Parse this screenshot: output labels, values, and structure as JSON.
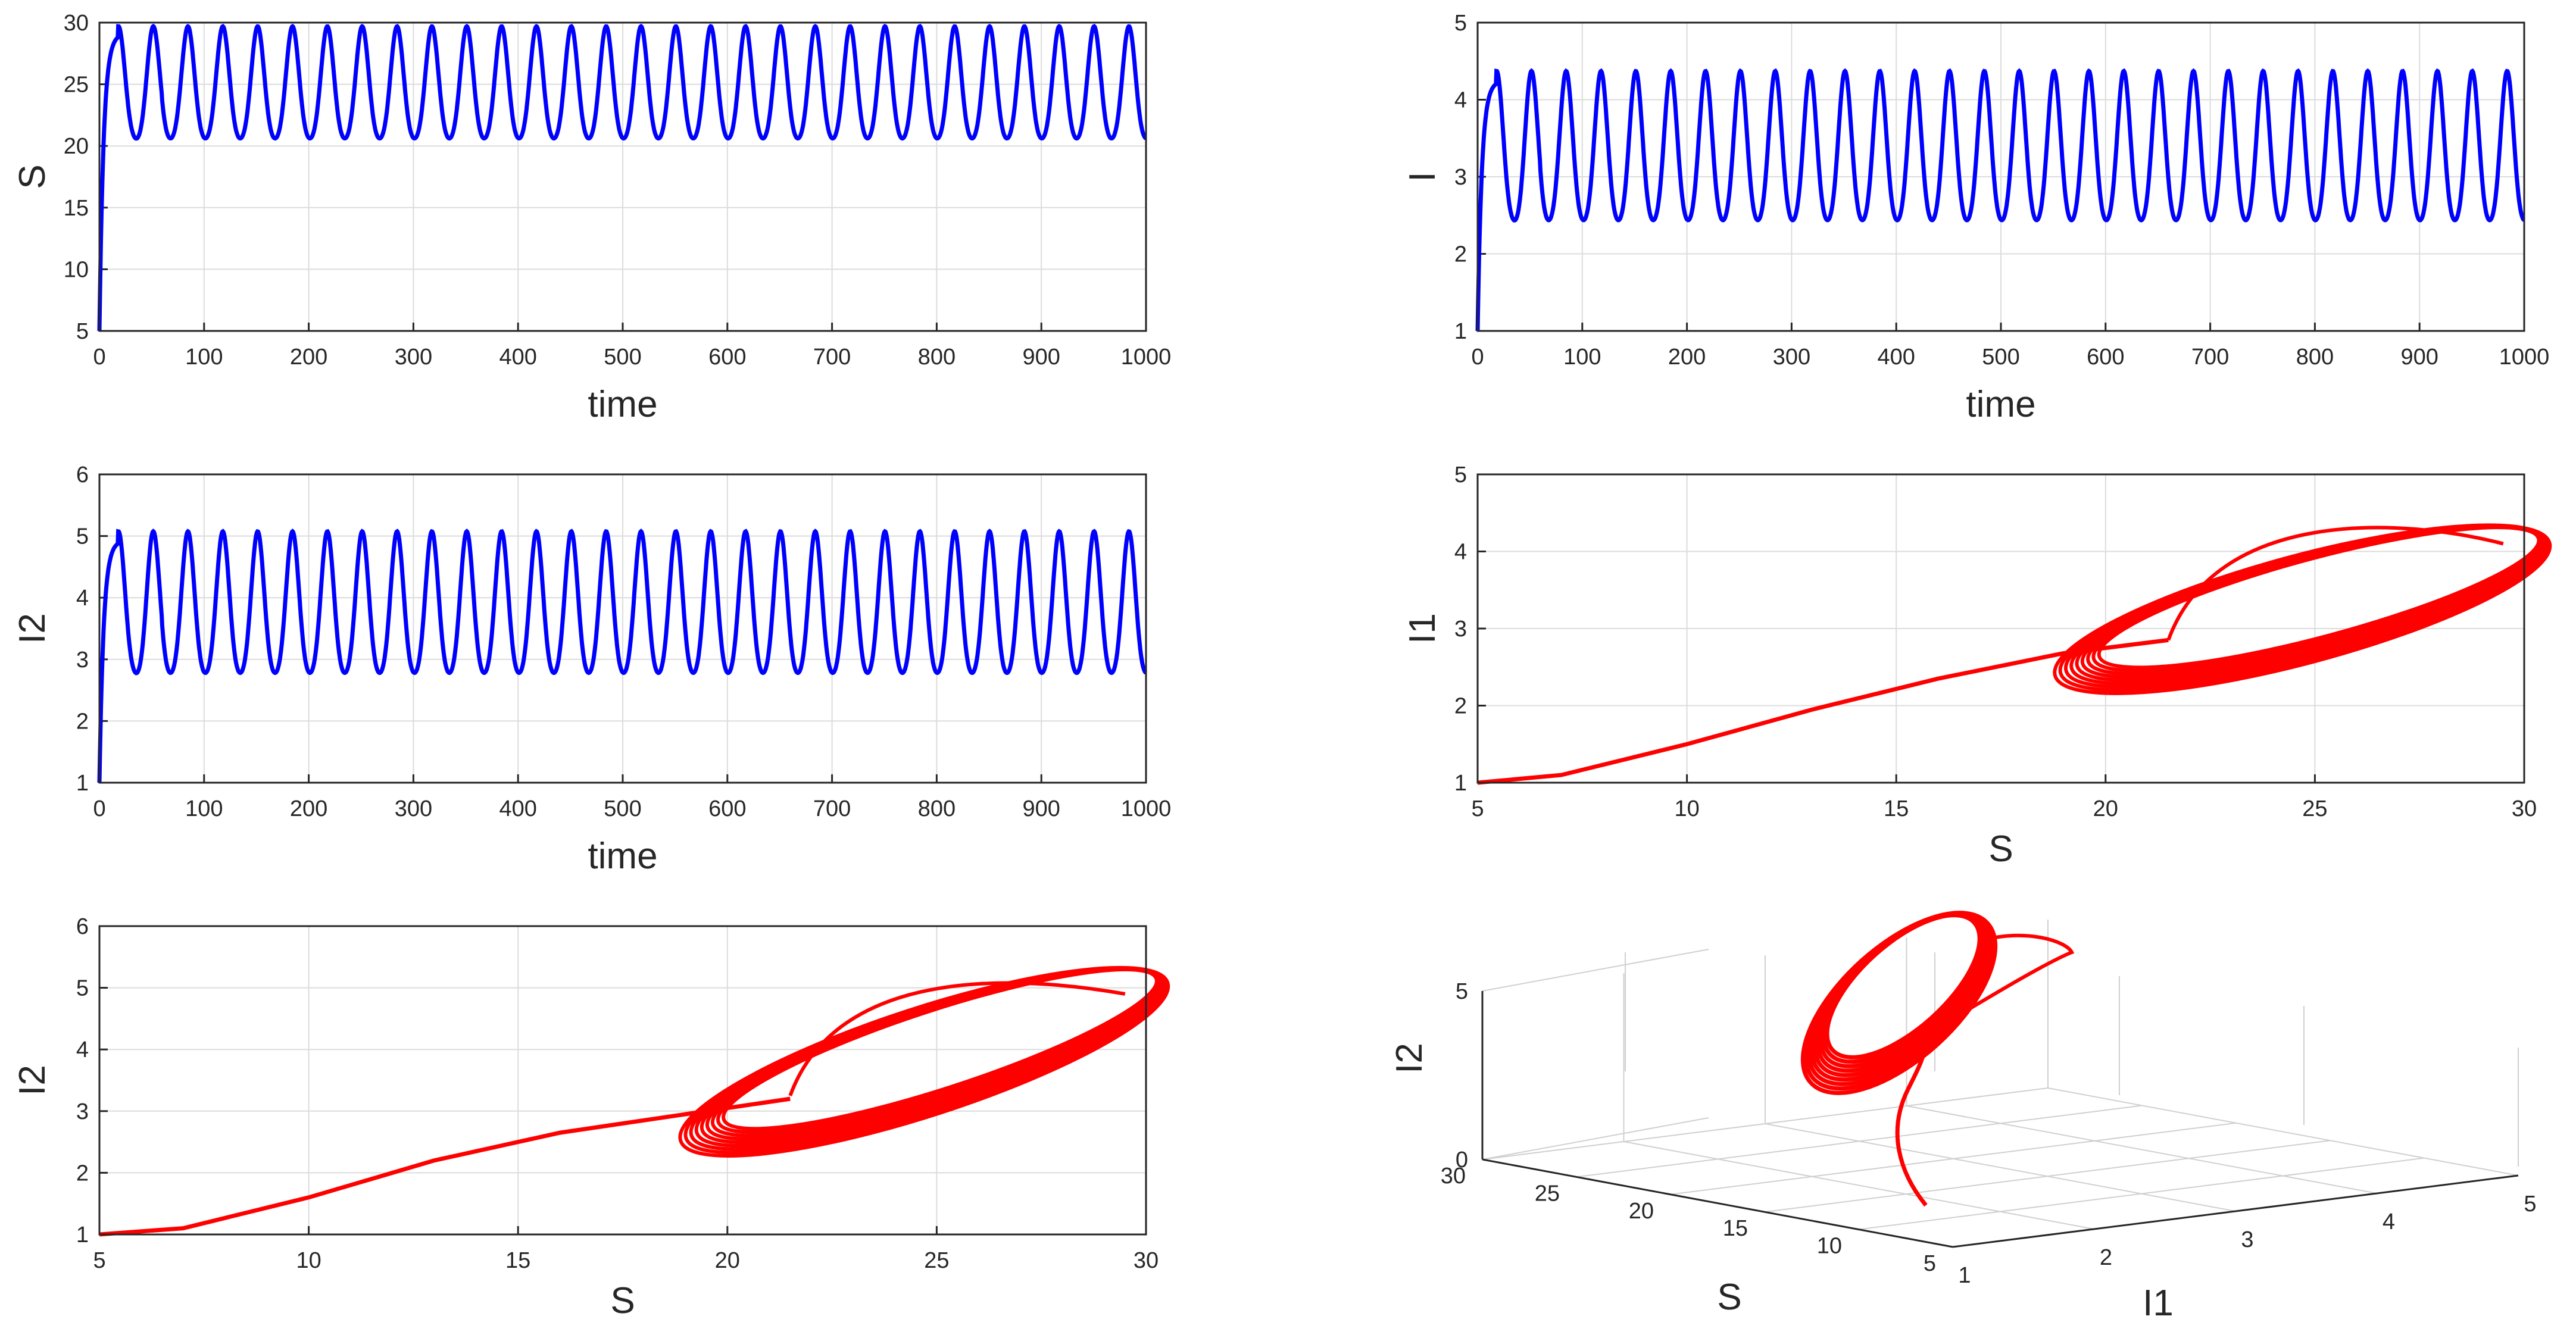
{
  "chart_data": [
    {
      "type": "line",
      "panel": "S-time",
      "xlabel": "time",
      "ylabel": "S",
      "xlim": [
        0,
        1000
      ],
      "ylim": [
        5,
        30
      ],
      "xticks": [
        "0",
        "100",
        "200",
        "300",
        "400",
        "500",
        "600",
        "700",
        "800",
        "900",
        "1000"
      ],
      "yticks": [
        "5",
        "10",
        "15",
        "20",
        "25",
        "30"
      ],
      "grid": true,
      "series": [
        {
          "color": "#0000ff",
          "t0": 0,
          "period": 33.3,
          "initial": 5,
          "min": 19.5,
          "max": 29.6,
          "end": 1000
        }
      ]
    },
    {
      "type": "line",
      "panel": "I-time",
      "xlabel": "time",
      "ylabel": "I",
      "xlim": [
        0,
        1000
      ],
      "ylim": [
        1,
        5
      ],
      "xticks": [
        "0",
        "100",
        "200",
        "300",
        "400",
        "500",
        "600",
        "700",
        "800",
        "900",
        "1000"
      ],
      "yticks": [
        "1",
        "2",
        "3",
        "4",
        "5"
      ],
      "grid": true,
      "series": [
        {
          "color": "#0000ff",
          "t0": 0,
          "period": 33.3,
          "initial": 1,
          "min": 2.2,
          "max": 4.35,
          "end": 1000
        }
      ]
    },
    {
      "type": "line",
      "panel": "I2-time",
      "xlabel": "time",
      "ylabel": "I2",
      "xlim": [
        0,
        1000
      ],
      "ylim": [
        1,
        6
      ],
      "xticks": [
        "0",
        "100",
        "200",
        "300",
        "400",
        "500",
        "600",
        "700",
        "800",
        "900",
        "1000"
      ],
      "yticks": [
        "1",
        "2",
        "3",
        "4",
        "5",
        "6"
      ],
      "grid": true,
      "series": [
        {
          "color": "#0000ff",
          "t0": 0,
          "period": 33.3,
          "initial": 1,
          "min": 2.5,
          "max": 5.05,
          "end": 1000
        }
      ]
    },
    {
      "type": "line",
      "panel": "S-I1-phase",
      "xlabel": "S",
      "ylabel": "I1",
      "xlim": [
        5,
        30
      ],
      "ylim": [
        1,
        5
      ],
      "xticks": [
        "5",
        "10",
        "15",
        "20",
        "25",
        "30"
      ],
      "yticks": [
        "1",
        "2",
        "3",
        "4",
        "5"
      ],
      "grid": true,
      "series": [
        {
          "color": "#ff0000",
          "transient": [
            [
              5,
              1.0
            ],
            [
              7,
              1.1
            ],
            [
              10,
              1.5
            ],
            [
              13,
              1.95
            ],
            [
              16,
              2.35
            ],
            [
              19,
              2.68
            ],
            [
              21.5,
              2.85
            ]
          ],
          "cycle_points": [
            [
              19.5,
              2.2
            ],
            [
              22,
              2.3
            ],
            [
              26,
              2.9
            ],
            [
              29.6,
              3.95
            ],
            [
              28,
              4.3
            ],
            [
              25,
              4.1
            ],
            [
              21.5,
              3.0
            ],
            [
              20,
              2.4
            ]
          ]
        }
      ]
    },
    {
      "type": "line",
      "panel": "S-I2-phase",
      "xlabel": "S",
      "ylabel": "I2",
      "xlim": [
        5,
        30
      ],
      "ylim": [
        1,
        6
      ],
      "xticks": [
        "5",
        "10",
        "15",
        "20",
        "25",
        "30"
      ],
      "yticks": [
        "1",
        "2",
        "3",
        "4",
        "5",
        "6"
      ],
      "grid": true,
      "series": [
        {
          "color": "#ff0000",
          "transient": [
            [
              5,
              1.0
            ],
            [
              7,
              1.1
            ],
            [
              10,
              1.6
            ],
            [
              13,
              2.2
            ],
            [
              16,
              2.65
            ],
            [
              19,
              2.95
            ],
            [
              21.5,
              3.2
            ]
          ],
          "cycle_points": [
            [
              19.5,
              2.5
            ],
            [
              22,
              2.75
            ],
            [
              26,
              3.5
            ],
            [
              29.6,
              4.8
            ],
            [
              28,
              5.1
            ],
            [
              25,
              4.9
            ],
            [
              21.5,
              3.4
            ],
            [
              20,
              2.6
            ]
          ]
        }
      ]
    },
    {
      "type": "line",
      "panel": "3D-phase",
      "xlabel": "I1",
      "ylabel": "S",
      "zlabel": "I2",
      "xlim": [
        1,
        5
      ],
      "ylim": [
        5,
        30
      ],
      "zlim": [
        0,
        5
      ],
      "xticks": [
        "1",
        "2",
        "3",
        "4",
        "5"
      ],
      "yticks": [
        "5",
        "10",
        "15",
        "20",
        "25",
        "30"
      ],
      "zticks": [
        "0",
        "5"
      ],
      "grid": true,
      "series": [
        {
          "color": "#ff0000"
        }
      ]
    }
  ]
}
